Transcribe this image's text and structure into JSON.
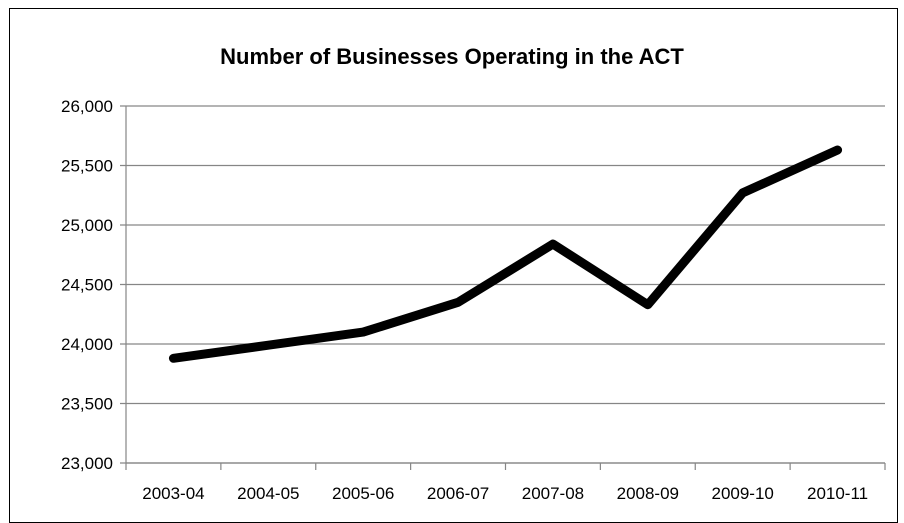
{
  "chart_data": {
    "type": "line",
    "title": "Number of Businesses Operating in the ACT",
    "xlabel": "",
    "ylabel": "",
    "categories": [
      "2003-04",
      "2004-05",
      "2005-06",
      "2006-07",
      "2007-08",
      "2008-09",
      "2009-10",
      "2010-11"
    ],
    "series": [
      {
        "values": [
          23880,
          23990,
          24100,
          24350,
          24840,
          24330,
          25270,
          25630
        ]
      }
    ],
    "ylim": [
      23000,
      26000
    ],
    "yticks": [
      23000,
      23500,
      24000,
      24500,
      25000,
      25500,
      26000
    ],
    "ytick_labels": [
      "23,000",
      "23,500",
      "24,000",
      "24,500",
      "25,000",
      "25,500",
      "26,000"
    ],
    "grid": "horizontal",
    "legend": "none",
    "colors": {
      "line": "#000000",
      "grid": "#868686",
      "axis": "#868686"
    }
  }
}
